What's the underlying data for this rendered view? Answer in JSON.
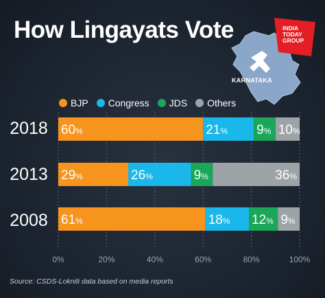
{
  "title": "How Lingayats Vote",
  "logo": {
    "line1": "INDIA",
    "line2": "TODAY",
    "line3": "GROUP"
  },
  "map_label": "KARNATAKA",
  "source": "Source: CSDS-Lokniti data based on media reports",
  "colors": {
    "BJP": "#f7941d",
    "Congress": "#1ab7ea",
    "JDS": "#1aa75a",
    "Others": "#9ea3a8"
  },
  "chart_data": {
    "type": "bar",
    "orientation": "horizontal",
    "stacked": true,
    "categories": [
      "2018",
      "2013",
      "2008"
    ],
    "series": [
      {
        "name": "BJP",
        "values": [
          60,
          29,
          61
        ]
      },
      {
        "name": "Congress",
        "values": [
          21,
          26,
          18
        ]
      },
      {
        "name": "JDS",
        "values": [
          9,
          9,
          12
        ]
      },
      {
        "name": "Others",
        "values": [
          10,
          36,
          9
        ]
      }
    ],
    "xlim": [
      0,
      100
    ],
    "xticks": [
      "0%",
      "20%",
      "40%",
      "60%",
      "80%",
      "100%"
    ],
    "legend": "top",
    "grid": false
  }
}
